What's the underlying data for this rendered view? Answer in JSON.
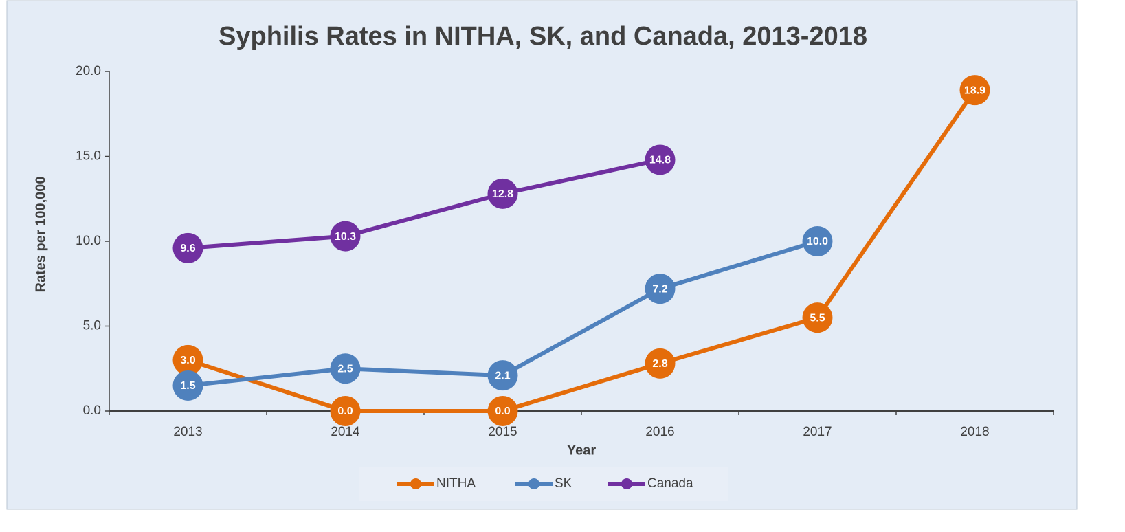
{
  "chart_data": {
    "type": "line",
    "title": "Syphilis Rates in NITHA, SK, and Canada, 2013-2018",
    "x_label": "Year",
    "y_label": "Rates per 100,000",
    "categories": [
      "2013",
      "2014",
      "2015",
      "2016",
      "2017",
      "2018"
    ],
    "series": [
      {
        "name": "NITHA",
        "color": "#e46c0a",
        "values": [
          3.0,
          0.0,
          0.0,
          2.8,
          5.5,
          18.9
        ],
        "value_labels": [
          "3.0",
          "0.0",
          "0.0",
          "2.8",
          "5.5",
          "18.9"
        ]
      },
      {
        "name": "SK",
        "color": "#4f81bd",
        "values": [
          1.5,
          2.5,
          2.1,
          7.2,
          10.0,
          null
        ],
        "value_labels": [
          "1.5",
          "2.5",
          "2.1",
          "7.2",
          "10.0",
          null
        ]
      },
      {
        "name": "Canada",
        "color": "#7030a0",
        "values": [
          9.6,
          10.3,
          12.8,
          14.8,
          null,
          null
        ],
        "value_labels": [
          "9.6",
          "10.3",
          "12.8",
          "14.8",
          null,
          null
        ]
      }
    ],
    "ylim": [
      0,
      20
    ],
    "yticks": [
      {
        "value": 0,
        "label": "0.0"
      },
      {
        "value": 5,
        "label": "5.0"
      },
      {
        "value": 10,
        "label": "10.0"
      },
      {
        "value": 15,
        "label": "15.0"
      },
      {
        "value": 20,
        "label": "20.0"
      }
    ],
    "grid": false,
    "legend": "bottom"
  }
}
